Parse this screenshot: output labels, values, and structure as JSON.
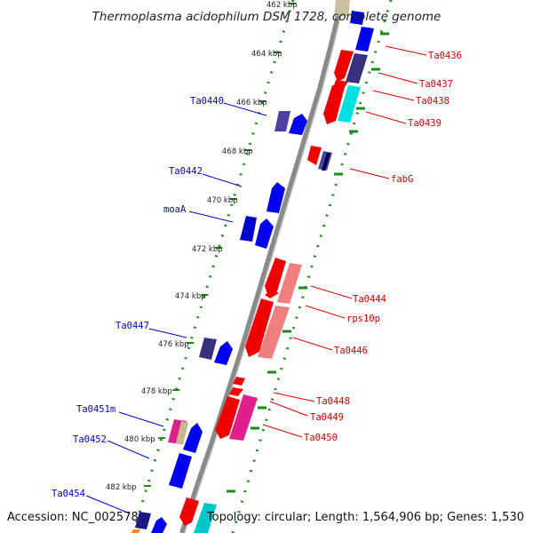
{
  "title": "Thermoplasma acidophilum DSM 1728, complete genome",
  "footer": {
    "accession": "Accession: NC_002578",
    "summary": "Topology: circular; Length: 1,564,906 bp; Genes: 1,530"
  },
  "colors": {
    "forward_gene": "#0000ee",
    "reverse_gene": "#ee0000",
    "left_label": "#0000cc",
    "right_label": "#cc0000",
    "dotted_ring": "#1a8a1a",
    "backbone": "#888888"
  },
  "kbp_ticks": [
    "462 kbp",
    "464 kbp",
    "466 kbp",
    "468 kbp",
    "470 kbp",
    "472 kbp",
    "474 kbp",
    "476 kbp",
    "478 kbp",
    "480 kbp",
    "482 kbp"
  ],
  "left_labels": [
    "Ta0440",
    "Ta0442",
    "moaA",
    "Ta0447",
    "Ta0451m",
    "Ta0452",
    "Ta0454"
  ],
  "right_labels": [
    "Ta0436",
    "Ta0437",
    "Ta0438",
    "Ta0439",
    "fabG",
    "Ta0444",
    "rps10p",
    "Ta0446",
    "Ta0448",
    "Ta0449",
    "Ta0450"
  ]
}
